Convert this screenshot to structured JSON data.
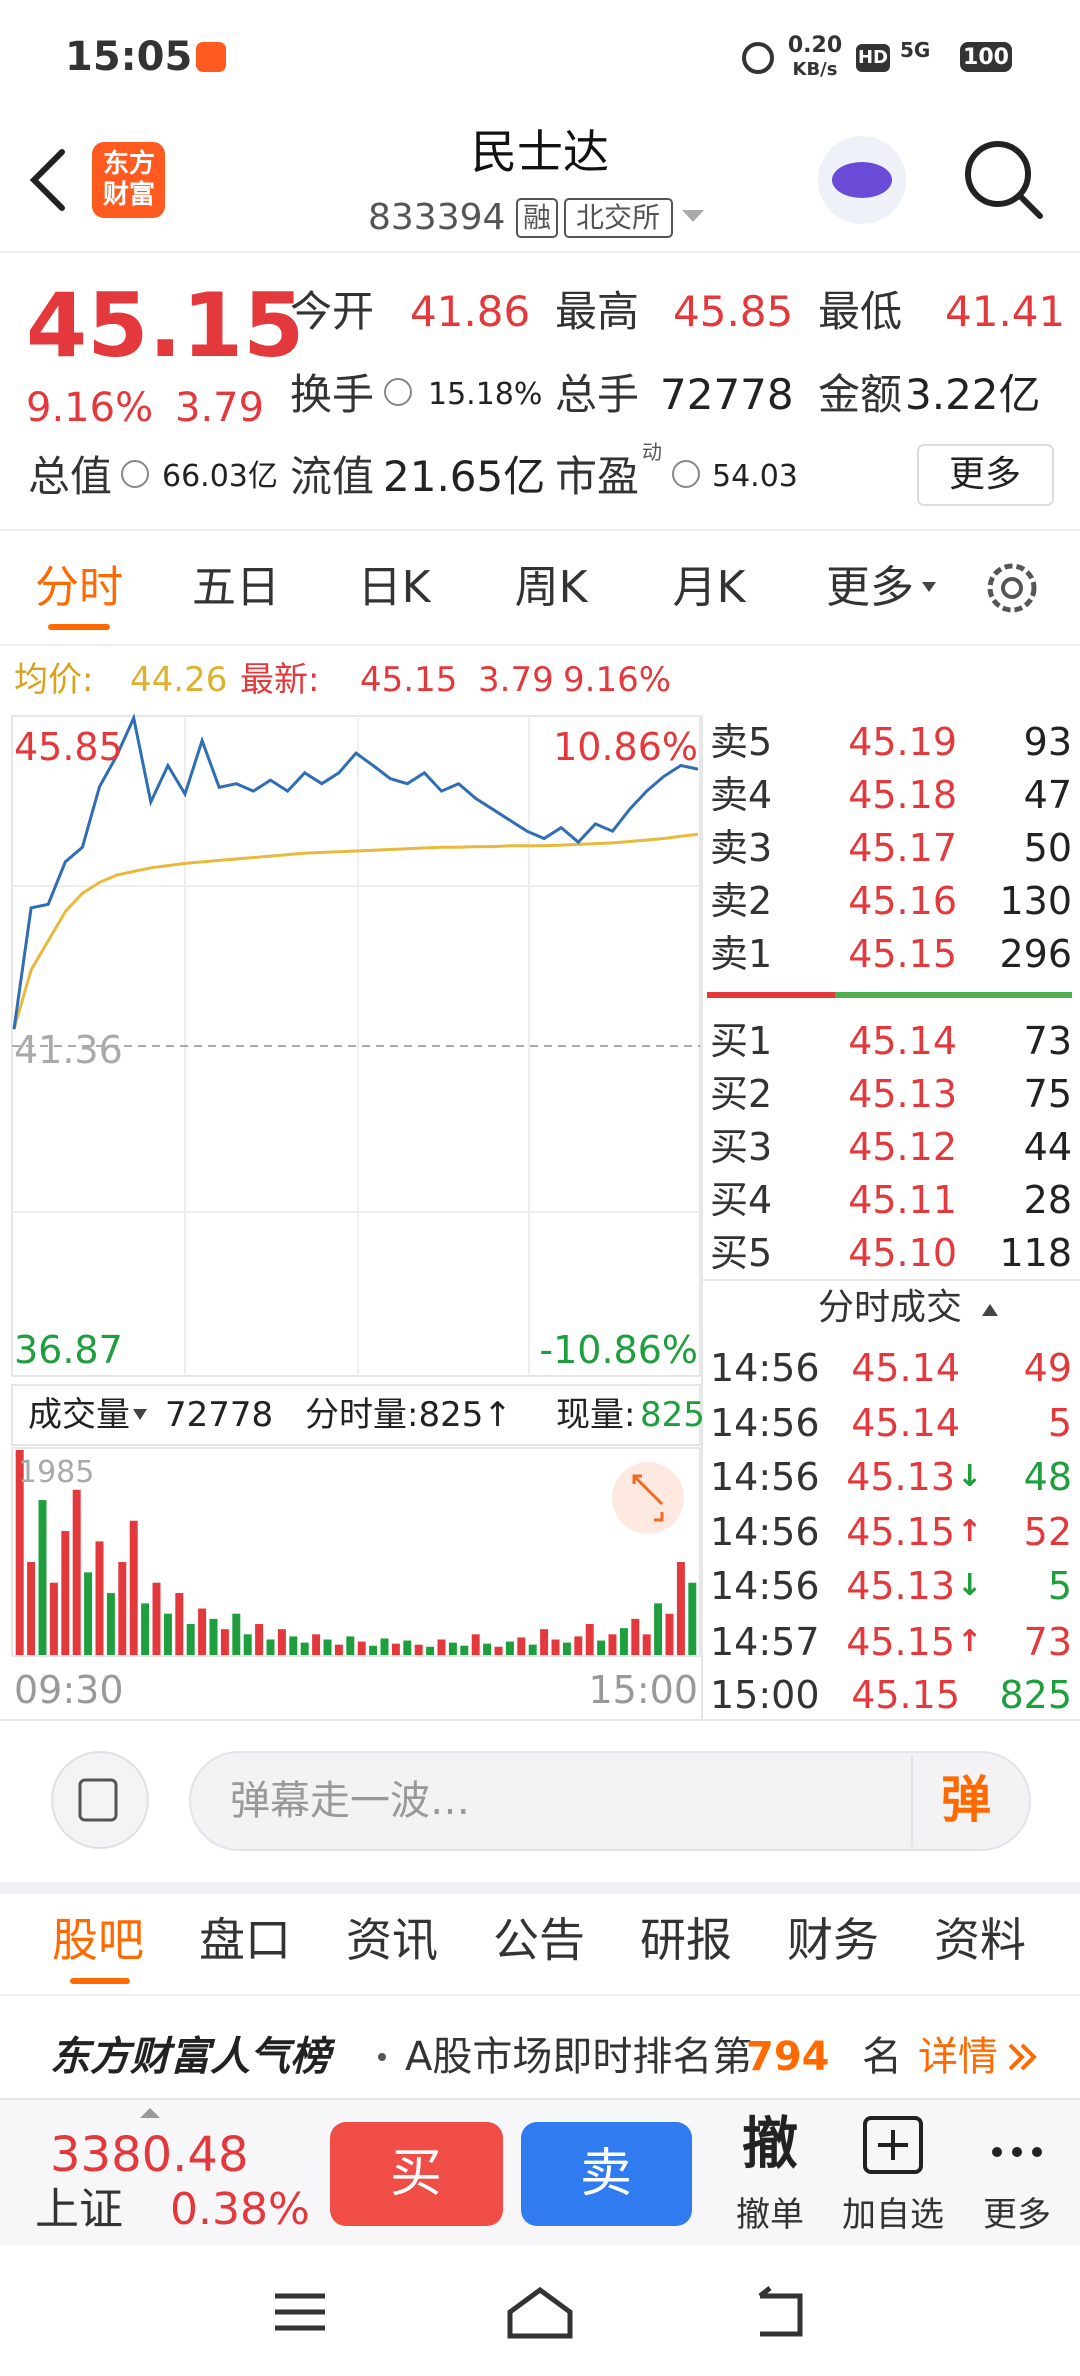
{
  "status_bar": {
    "time": "15:05",
    "network_speed": "0.20",
    "speed_unit": "KB/s",
    "hd": "HD",
    "signal": "5G",
    "battery": "100"
  },
  "header": {
    "logo": "东方财富",
    "title": "民士达",
    "code": "833394",
    "margin_tag": "融",
    "exchange": "北交所"
  },
  "quote": {
    "price": "45.15",
    "change_pct": "9.16%",
    "change": "3.79",
    "stats": [
      {
        "label": "今开",
        "value": "41.86"
      },
      {
        "label": "最高",
        "value": "45.85"
      },
      {
        "label": "最低",
        "value": "41.41"
      },
      {
        "label": "换手",
        "value": "15.18%"
      },
      {
        "label": "总手",
        "value": "72778"
      },
      {
        "label": "金额",
        "value": "3.22亿"
      },
      {
        "label": "总值",
        "value": "66.03亿"
      },
      {
        "label": "流值",
        "value": "21.65亿"
      },
      {
        "label": "市盈",
        "value": "54.03",
        "sup": "动"
      }
    ],
    "more": "更多"
  },
  "chart_tabs": [
    "分时",
    "五日",
    "日K",
    "周K",
    "月K",
    "更多"
  ],
  "intraday": {
    "avg_label": "均价:",
    "avg": "44.26",
    "last_label": "最新:",
    "last": "45.15",
    "change": "3.79",
    "change_pct": "9.16%",
    "ylim": [
      36.87,
      45.85
    ],
    "prev_close": 41.36,
    "ylim_pct": [
      "-10.86%",
      "10.86%"
    ],
    "price": {
      "color": "#2f6db5",
      "values": [
        41.59,
        43.25,
        43.3,
        43.88,
        44.08,
        44.91,
        45.33,
        45.85,
        44.7,
        45.2,
        44.81,
        45.54,
        44.9,
        44.95,
        44.85,
        45.0,
        44.85,
        45.1,
        44.95,
        45.1,
        45.37,
        45.2,
        45.02,
        44.95,
        45.1,
        44.85,
        44.95,
        44.75,
        44.6,
        44.45,
        44.3,
        44.2,
        44.35,
        44.15,
        44.4,
        44.3,
        44.6,
        44.85,
        45.05,
        45.2,
        45.15
      ]
    },
    "avg_line": {
      "color": "#e8b93a",
      "values": [
        41.59,
        42.4,
        42.8,
        43.2,
        43.45,
        43.6,
        43.7,
        43.75,
        43.8,
        43.83,
        43.86,
        43.88,
        43.9,
        43.92,
        43.94,
        43.96,
        43.98,
        44.0,
        44.01,
        44.02,
        44.03,
        44.04,
        44.05,
        44.06,
        44.07,
        44.08,
        44.08,
        44.09,
        44.09,
        44.1,
        44.1,
        44.1,
        44.11,
        44.12,
        44.13,
        44.14,
        44.16,
        44.18,
        44.2,
        44.23,
        44.26
      ]
    },
    "volume": {
      "label": "成交量",
      "total": "72778",
      "minute_label": "分时量:825↑",
      "current_label": "现量:",
      "current": "825",
      "ylim": [
        0,
        1985
      ],
      "values": [
        1985,
        900,
        1500,
        700,
        1200,
        1600,
        800,
        1100,
        600,
        900,
        1300,
        500,
        700,
        400,
        600,
        300,
        450,
        350,
        250,
        400,
        200,
        300,
        150,
        250,
        180,
        120,
        200,
        150,
        100,
        180,
        130,
        90,
        160,
        110,
        140,
        100,
        80,
        150,
        120,
        90,
        200,
        110,
        80,
        130,
        170,
        100,
        250,
        150,
        120,
        180,
        300,
        140,
        200,
        260,
        350,
        200,
        500,
        400,
        900,
        700
      ],
      "up": [
        true,
        true,
        false,
        true,
        true,
        true,
        false,
        true,
        false,
        true,
        true,
        false,
        true,
        false,
        true,
        false,
        true,
        false,
        true,
        false,
        false,
        true,
        false,
        true,
        false,
        false,
        true,
        false,
        true,
        false,
        true,
        false,
        false,
        true,
        false,
        true,
        false,
        true,
        false,
        false,
        true,
        false,
        true,
        false,
        true,
        false,
        true,
        true,
        false,
        true,
        true,
        false,
        true,
        false,
        true,
        true,
        false,
        true,
        true,
        false
      ]
    },
    "x_labels": [
      "09:30",
      "15:00"
    ]
  },
  "order_book": {
    "asks": [
      {
        "label": "卖5",
        "price": "45.19",
        "volume": "93"
      },
      {
        "label": "卖4",
        "price": "45.18",
        "volume": "47"
      },
      {
        "label": "卖3",
        "price": "45.17",
        "volume": "50"
      },
      {
        "label": "卖2",
        "price": "45.16",
        "volume": "130"
      },
      {
        "label": "卖1",
        "price": "45.15",
        "volume": "296"
      }
    ],
    "bids": [
      {
        "label": "买1",
        "price": "45.14",
        "volume": "73"
      },
      {
        "label": "买2",
        "price": "45.13",
        "volume": "75"
      },
      {
        "label": "买3",
        "price": "45.12",
        "volume": "44"
      },
      {
        "label": "买4",
        "price": "45.11",
        "volume": "28"
      },
      {
        "label": "买5",
        "price": "45.10",
        "volume": "118"
      }
    ]
  },
  "trades": {
    "title": "分时成交",
    "rows": [
      {
        "time": "14:56",
        "price": "45.14",
        "volume": "49",
        "volume_color": "red"
      },
      {
        "time": "14:56",
        "price": "45.14",
        "volume": "5",
        "volume_color": "red"
      },
      {
        "time": "14:56",
        "price": "45.13",
        "arrow": "↓",
        "arrow_color": "green",
        "volume": "48",
        "volume_color": "green"
      },
      {
        "time": "14:56",
        "price": "45.15",
        "arrow": "↑",
        "arrow_color": "red",
        "volume": "52",
        "volume_color": "red"
      },
      {
        "time": "14:56",
        "price": "45.13",
        "arrow": "↓",
        "arrow_color": "green",
        "volume": "5",
        "volume_color": "green"
      },
      {
        "time": "14:57",
        "price": "45.15",
        "arrow": "↑",
        "arrow_color": "red",
        "volume": "73",
        "volume_color": "red"
      },
      {
        "time": "15:00",
        "price": "45.15",
        "volume": "825",
        "volume_color": "green"
      }
    ]
  },
  "danmu": {
    "placeholder": "弹幕走一波…",
    "button": "弹"
  },
  "info_tabs": [
    "股吧",
    "盘口",
    "资讯",
    "公告",
    "研报",
    "财务",
    "资料"
  ],
  "ranking": {
    "brand": "东方财富人气榜",
    "text": "A股市场即时排名第",
    "rank": "794",
    "suffix": "名",
    "link": "详情"
  },
  "bottom_bar": {
    "index_value": "3380.48",
    "index_name": "上证",
    "index_change": "0.38%",
    "buy": "买",
    "sell": "卖",
    "cancel_icon": "撤",
    "cancel": "撤单",
    "watchlist": "加自选",
    "more": "更多"
  }
}
